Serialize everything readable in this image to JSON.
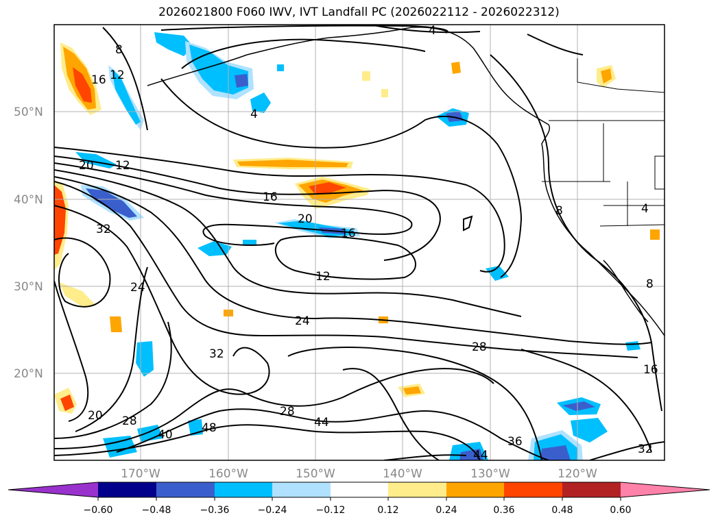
{
  "title": "2026021800 F060 IWV, IVT Landfall PC (2026022112 - 2026022312)",
  "lat_ticks": [
    "50°N",
    "40°N",
    "30°N",
    "20°N"
  ],
  "lon_ticks": [
    "170°W",
    "160°W",
    "150°W",
    "140°W",
    "130°W",
    "120°W"
  ],
  "contour_labels": [
    "4",
    "4",
    "4",
    "8",
    "8",
    "8",
    "12",
    "12",
    "12",
    "16",
    "16",
    "16",
    "16",
    "20",
    "20",
    "20",
    "24",
    "24",
    "28",
    "28",
    "28",
    "32",
    "32",
    "32",
    "36",
    "40",
    "44",
    "44",
    "48"
  ],
  "colorbar": {
    "tick_labels": [
      "−0.60",
      "−0.48",
      "−0.36",
      "−0.24",
      "−0.12",
      "0.12",
      "0.24",
      "0.36",
      "0.48",
      "0.60"
    ],
    "colors": [
      "#9932cc",
      "#00008b",
      "#3a5fcd",
      "#00bfff",
      "#b0e2ff",
      "#ffffff",
      "#ffec8b",
      "#ffa500",
      "#ff4500",
      "#b22222",
      "#ff82ab"
    ]
  }
}
